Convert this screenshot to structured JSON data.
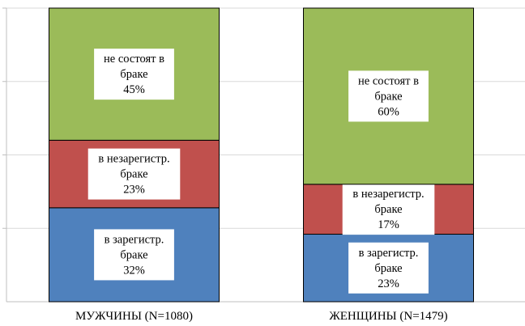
{
  "chart_data": {
    "type": "bar",
    "stacked": true,
    "percent": true,
    "categories": [
      "МУЖЧИНЫ (N=1080)",
      "ЖЕНЩИНЫ (N=1479)"
    ],
    "series": [
      {
        "label_lines": [
          "в зарегистр.",
          "браке"
        ],
        "values": [
          32,
          23
        ],
        "color": "#4f81bd"
      },
      {
        "label_lines": [
          "в незарегистр.",
          "браке"
        ],
        "values": [
          23,
          17
        ],
        "color": "#c0504d"
      },
      {
        "label_lines": [
          "не состоят в",
          "браке"
        ],
        "values": [
          45,
          60
        ],
        "color": "#9bbb59"
      }
    ],
    "ylim": [
      0,
      100
    ],
    "grid": true
  }
}
